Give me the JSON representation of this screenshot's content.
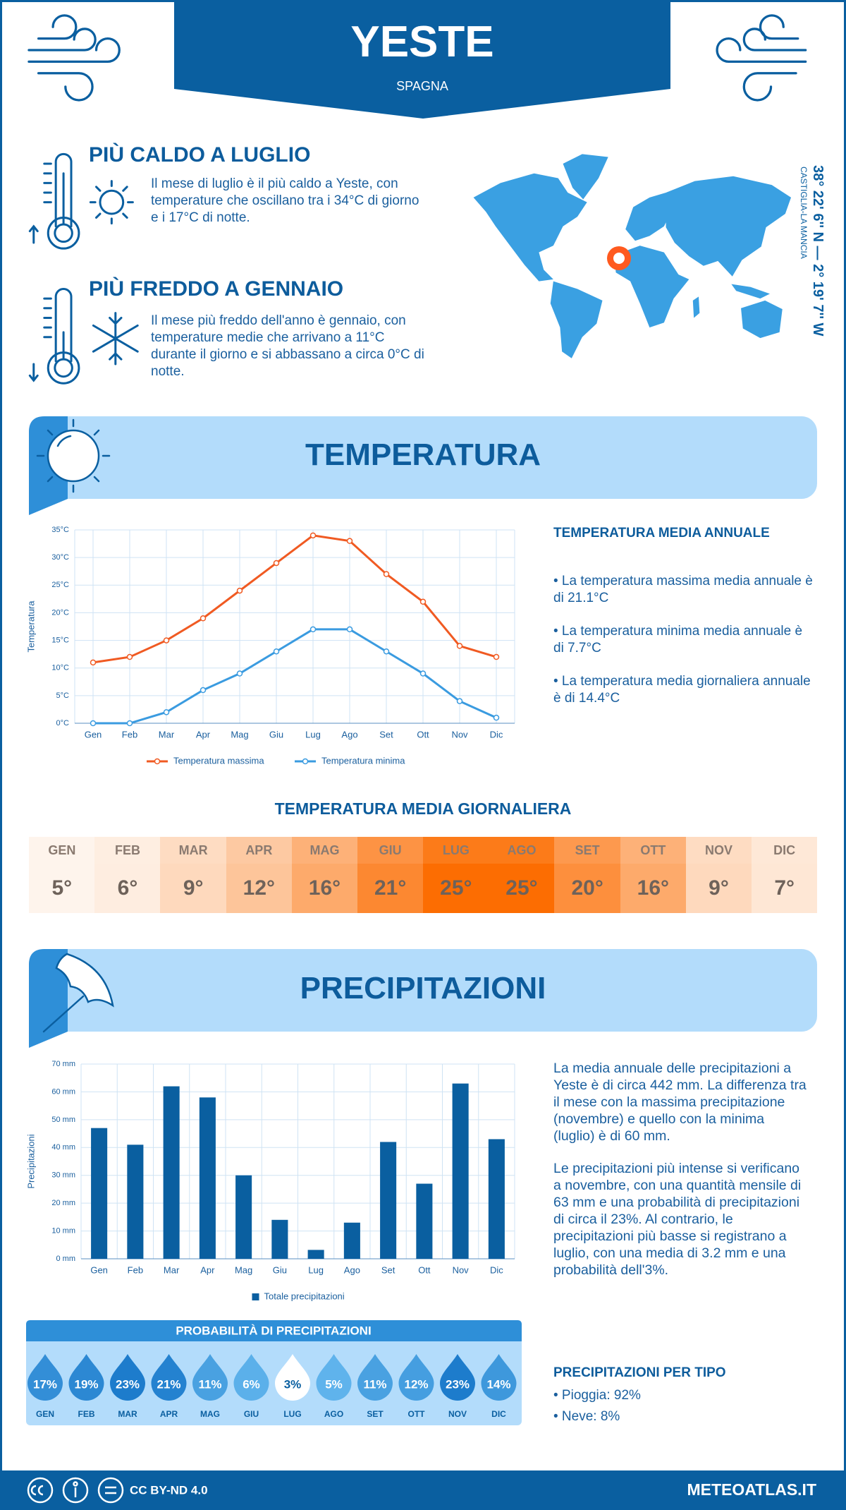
{
  "header": {
    "title": "YESTE",
    "subtitle": "SPAGNA"
  },
  "facts": [
    {
      "title": "PIÙ CALDO A LUGLIO",
      "text": "Il mese di luglio è il più caldo a Yeste, con temperature che oscillano tra i 34°C di giorno e i 17°C di notte."
    },
    {
      "title": "PIÙ FREDDO A GENNAIO",
      "text": "Il mese più freddo dell'anno è gennaio, con temperature medie che arrivano a 11°C durante il giorno e si abbassano a circa 0°C di notte."
    }
  ],
  "location": {
    "coordinates": "38° 22' 6'' N — 2° 19' 7'' W",
    "region": "CASTIGLIA-LA MANCIA"
  },
  "temperature_section": {
    "title": "TEMPERATURA",
    "annual_title": "TEMPERATURA MEDIA ANNUALE",
    "annual_items": [
      "• La temperatura massima media annuale è di 21.1°C",
      "• La temperatura minima media annuale è di 7.7°C",
      "• La temperatura media giornaliera annuale è di 14.4°C"
    ]
  },
  "daily_table": {
    "title": "TEMPERATURA MEDIA GIORNALIERA",
    "months": [
      "GEN",
      "FEB",
      "MAR",
      "APR",
      "MAG",
      "GIU",
      "LUG",
      "AGO",
      "SET",
      "OTT",
      "NOV",
      "DIC"
    ],
    "values": [
      5,
      6,
      9,
      12,
      16,
      21,
      25,
      25,
      20,
      16,
      9,
      7
    ],
    "value_labels": [
      "5°",
      "6°",
      "9°",
      "12°",
      "16°",
      "21°",
      "25°",
      "25°",
      "20°",
      "16°",
      "9°",
      "7°"
    ]
  },
  "chart_data": [
    {
      "type": "line",
      "categories": [
        "Gen",
        "Feb",
        "Mar",
        "Apr",
        "Mag",
        "Giu",
        "Lug",
        "Ago",
        "Set",
        "Ott",
        "Nov",
        "Dic"
      ],
      "series": [
        {
          "name": "Temperatura massima",
          "color": "#f05a22",
          "values": [
            11,
            12,
            15,
            19,
            24,
            29,
            34,
            33,
            27,
            22,
            14,
            12
          ]
        },
        {
          "name": "Temperatura minima",
          "color": "#3a9be0",
          "values": [
            0,
            0,
            2,
            6,
            9,
            13,
            17,
            17,
            13,
            9,
            4,
            1
          ]
        }
      ],
      "ylim": [
        0,
        35
      ],
      "yticks": [
        {
          "value": 0,
          "label": "0°C"
        },
        {
          "value": 5,
          "label": "5°C"
        },
        {
          "value": 10,
          "label": "10°C"
        },
        {
          "value": 15,
          "label": "15°C"
        },
        {
          "value": 20,
          "label": "20°C"
        },
        {
          "value": 25,
          "label": "25°C"
        },
        {
          "value": 30,
          "label": "30°C"
        },
        {
          "value": 35,
          "label": "35°C"
        }
      ],
      "y_label": "Temperatura",
      "grid": true
    },
    {
      "type": "bar",
      "categories": [
        "Gen",
        "Feb",
        "Mar",
        "Apr",
        "Mag",
        "Giu",
        "Lug",
        "Ago",
        "Set",
        "Ott",
        "Nov",
        "Dic"
      ],
      "series": [
        {
          "name": "Totale precipitazioni",
          "color": "#0a5fa0",
          "values": [
            47,
            41,
            62,
            58,
            30,
            14,
            3.2,
            13,
            42,
            27,
            63,
            43
          ]
        }
      ],
      "ylim": [
        0,
        70
      ],
      "yticks": [
        {
          "value": 0,
          "label": "0 mm"
        },
        {
          "value": 10,
          "label": "10 mm"
        },
        {
          "value": 20,
          "label": "20 mm"
        },
        {
          "value": 30,
          "label": "30 mm"
        },
        {
          "value": 40,
          "label": "40 mm"
        },
        {
          "value": 50,
          "label": "50 mm"
        },
        {
          "value": 60,
          "label": "60 mm"
        },
        {
          "value": 70,
          "label": "70 mm"
        }
      ],
      "y_label": "Precipitazioni",
      "grid": true
    }
  ],
  "precipitation_section": {
    "title": "PRECIPITAZIONI",
    "paragraphs": [
      "La media annuale delle precipitazioni a Yeste è di circa 442 mm. La differenza tra il mese con la massima precipitazione (novembre) e quello con la minima (luglio) è di 60 mm.",
      "Le precipitazioni più intense si verificano a novembre, con una quantità mensile di 63 mm e una probabilità di precipitazioni di circa il 23%. Al contrario, le precipitazioni più basse si registrano a luglio, con una media di 3.2 mm e una probabilità dell'3%."
    ],
    "probability": {
      "title": "PROBABILITÀ DI PRECIPITAZIONI",
      "months": [
        "GEN",
        "FEB",
        "MAR",
        "APR",
        "MAG",
        "GIU",
        "LUG",
        "AGO",
        "SET",
        "OTT",
        "NOV",
        "DIC"
      ],
      "values": [
        17,
        19,
        23,
        21,
        11,
        6,
        3,
        5,
        11,
        12,
        23,
        14
      ],
      "value_labels": [
        "17%",
        "19%",
        "23%",
        "21%",
        "11%",
        "6%",
        "3%",
        "5%",
        "11%",
        "12%",
        "23%",
        "14%"
      ]
    },
    "type_title": "PRECIPITAZIONI PER TIPO",
    "type_items": [
      "• Pioggia: 92%",
      "• Neve: 8%"
    ]
  },
  "footer": {
    "license": "CC BY-ND 4.0",
    "site": "METEOATLAS.IT"
  }
}
